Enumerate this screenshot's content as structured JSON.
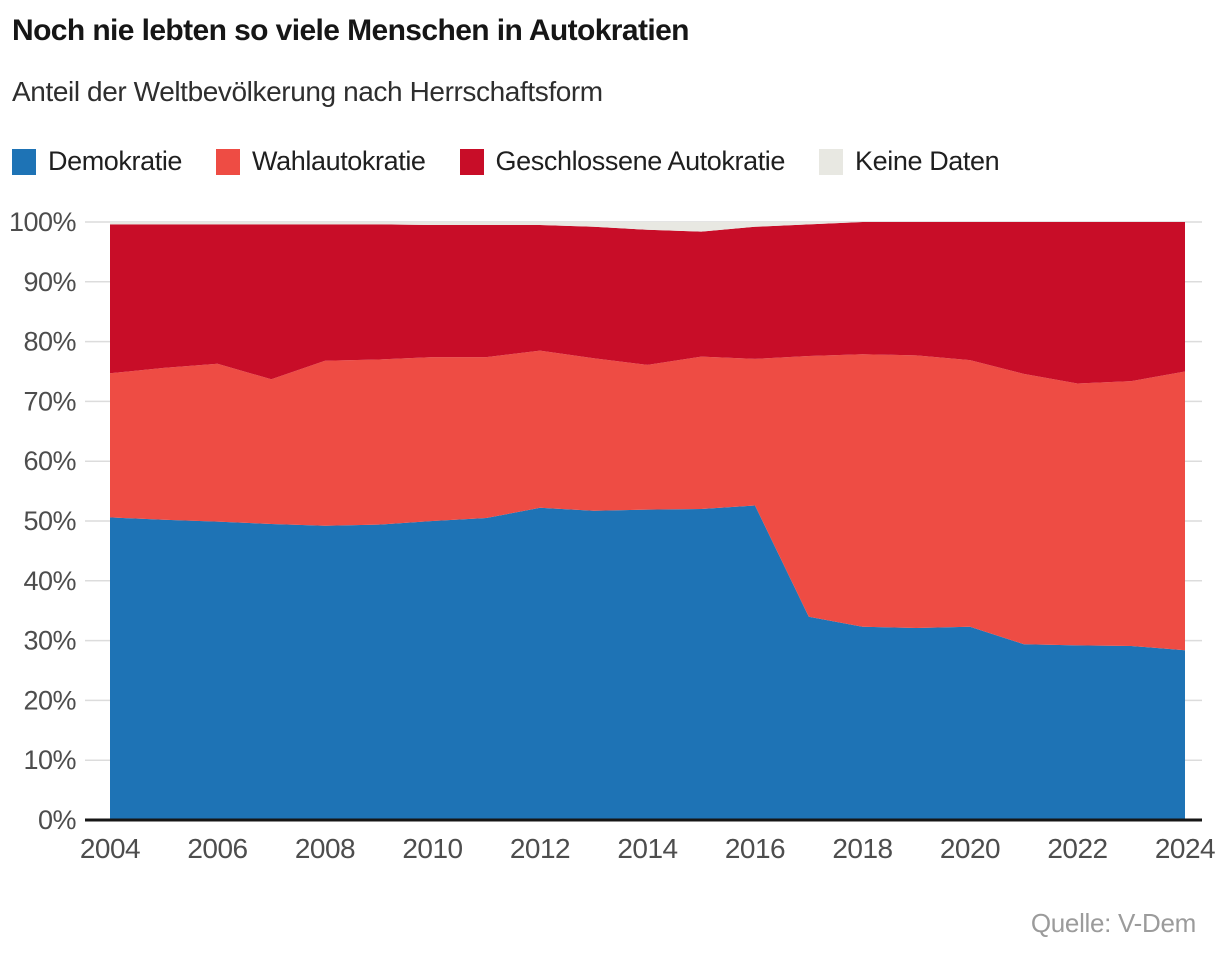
{
  "header": {
    "title": "Noch nie lebten so viele Menschen in Autokratien",
    "subtitle": "Anteil der Weltbevölkerung nach Herrschaftsform"
  },
  "legend": {
    "items": [
      {
        "id": "demokratie",
        "label": "Demokratie",
        "color": "#1e73b5"
      },
      {
        "id": "wahlautokratie",
        "label": "Wahlautokratie",
        "color": "#ee4c44"
      },
      {
        "id": "geschlossene-autokratie",
        "label": "Geschlossene Autokratie",
        "color": "#c80d28"
      },
      {
        "id": "keine-daten",
        "label": "Keine Daten",
        "color": "#e8e8e2"
      }
    ]
  },
  "footer": {
    "source": "Quelle: V-Dem"
  },
  "chart_data": {
    "type": "area",
    "stacked": true,
    "title": "Noch nie lebten so viele Menschen in Autokratien",
    "subtitle": "Anteil der Weltbevölkerung nach Herrschaftsform",
    "unit": "%",
    "xlabel": "",
    "ylabel": "",
    "xlim": [
      2004,
      2024
    ],
    "ylim": [
      0,
      100
    ],
    "grid": "horizontal",
    "legend_position": "top",
    "x": [
      2004,
      2005,
      2006,
      2007,
      2008,
      2009,
      2010,
      2011,
      2012,
      2013,
      2014,
      2015,
      2016,
      2017,
      2018,
      2019,
      2020,
      2021,
      2022,
      2023,
      2024
    ],
    "x_ticks": [
      2004,
      2006,
      2008,
      2010,
      2012,
      2014,
      2016,
      2018,
      2020,
      2022,
      2024
    ],
    "x_tick_labels": [
      "2004",
      "2006",
      "2008",
      "2010",
      "2012",
      "2014",
      "2016",
      "2018",
      "2020",
      "2022",
      "2024"
    ],
    "y_ticks": [
      0,
      10,
      20,
      30,
      40,
      50,
      60,
      70,
      80,
      90,
      100
    ],
    "y_tick_labels": [
      "0%",
      "10%",
      "20%",
      "30%",
      "40%",
      "50%",
      "60%",
      "70%",
      "80%",
      "90%",
      "100%"
    ],
    "series": [
      {
        "name": "Demokratie",
        "color": "#1e73b5",
        "values": [
          50.6,
          50.2,
          49.9,
          49.5,
          49.2,
          49.4,
          50.0,
          50.5,
          52.2,
          51.7,
          51.9,
          52.0,
          52.6,
          34.0,
          32.3,
          32.1,
          32.3,
          29.4,
          29.2,
          29.1,
          28.4
        ]
      },
      {
        "name": "Wahlautokratie",
        "color": "#ee4c44",
        "values": [
          24.1,
          25.4,
          26.4,
          24.2,
          27.6,
          27.6,
          27.4,
          26.9,
          26.3,
          25.5,
          24.2,
          25.5,
          24.5,
          43.6,
          45.6,
          45.6,
          44.6,
          45.2,
          43.8,
          44.3,
          46.6
        ]
      },
      {
        "name": "Geschlossene Autokratie",
        "color": "#c80d28",
        "values": [
          24.9,
          24.0,
          23.3,
          25.9,
          22.8,
          22.6,
          22.1,
          22.1,
          21.0,
          22.0,
          22.6,
          20.9,
          22.1,
          22.0,
          22.1,
          22.3,
          23.1,
          25.4,
          27.0,
          26.6,
          25.0
        ]
      },
      {
        "name": "Keine Daten",
        "color": "#e8e8e2",
        "values": [
          0.4,
          0.4,
          0.4,
          0.4,
          0.4,
          0.4,
          0.5,
          0.5,
          0.5,
          0.8,
          1.3,
          1.6,
          0.8,
          0.4,
          0.0,
          0.0,
          0.0,
          0.0,
          0.0,
          0.0,
          0.0
        ]
      }
    ],
    "style": {
      "grid_color": "#dcdcdc",
      "axis_color": "#161616",
      "tick_label_color": "#4d4d4d"
    }
  }
}
